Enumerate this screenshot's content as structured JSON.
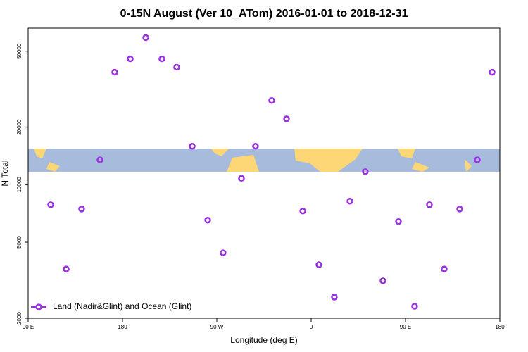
{
  "chart_data": {
    "type": "scatter",
    "title": "0-15N August (Ver 10_ATom)   2016-01-01 to 2018-12-31",
    "x_label": "Longitude (deg E)",
    "y_label": "N Total",
    "xlim": [
      90,
      540
    ],
    "ylim": [
      2000,
      66000
    ],
    "log_y": true,
    "legend": "lower left",
    "xticks": [
      {
        "value": 90,
        "label": "90 E"
      },
      180,
      {
        "value": 270,
        "label": "90 W"
      },
      {
        "value": 360,
        "label": "0"
      },
      {
        "value": 450,
        "label": "90 E"
      },
      {
        "value": 540,
        "label": "180"
      }
    ],
    "yticks": [
      2000,
      5000,
      10000,
      20000,
      50000
    ],
    "series": [
      {
        "name": "Land (Nadir&Glint) and Ocean (Glint)",
        "color": "#9b30e0",
        "x": [
          111.5,
          126.3,
          141,
          158.5,
          172.6,
          187.4,
          202.2,
          217.6,
          231.7,
          246.5,
          261.3,
          276,
          293.5,
          306.9,
          322.4,
          336.5,
          352,
          367.4,
          382.1,
          396.9,
          411.7,
          428.5,
          443.3,
          458.7,
          472.8,
          486.9,
          501.7,
          518.5,
          532.6
        ],
        "values": [
          7850,
          3620,
          7460,
          13500,
          38800,
          45600,
          58900,
          45600,
          41200,
          15900,
          6520,
          4400,
          10800,
          15900,
          27600,
          22100,
          7280,
          3810,
          2580,
          8200,
          11700,
          3140,
          6410,
          2310,
          7850,
          3620,
          7460,
          13500,
          38800
        ]
      }
    ]
  }
}
